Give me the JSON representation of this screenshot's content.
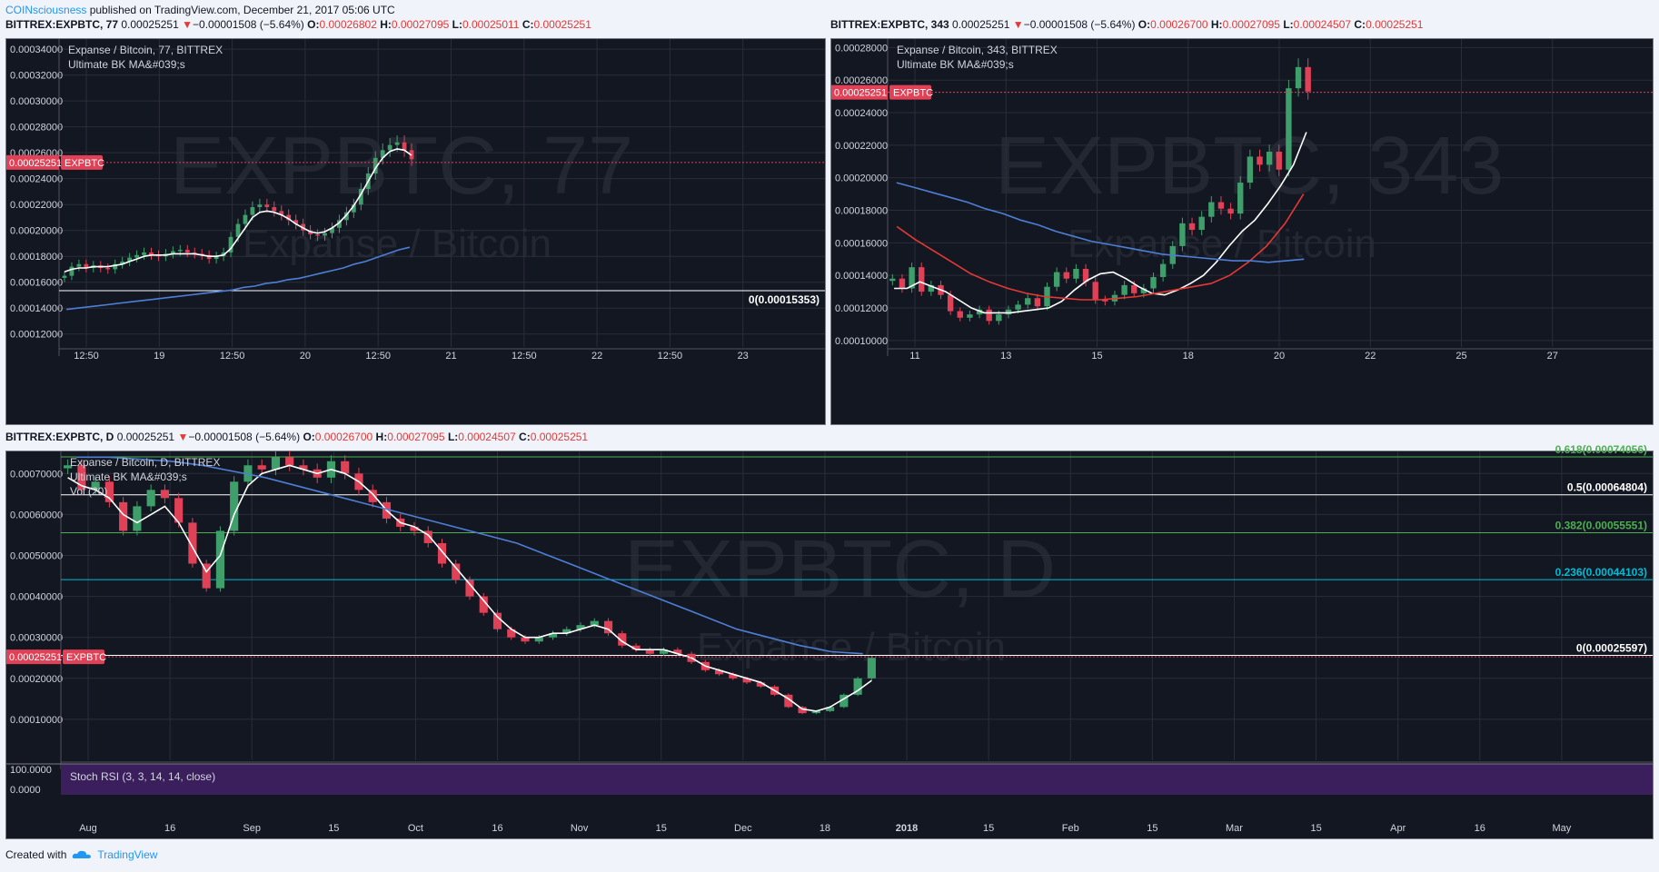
{
  "publish": {
    "user": "COINsciousness",
    "text": " published on TradingView.com, December 21, 2017 05:06 UTC"
  },
  "charts_header": [
    {
      "symbol": "BITTREX:EXPBTC, 77",
      "price": "0.00025251",
      "arrow": "▼",
      "change": "−0.00001508 (−5.64%)",
      "o": "0.00026802",
      "h": "0.00027095",
      "l": "0.00025011",
      "c": "0.00025251"
    },
    {
      "symbol": "BITTREX:EXPBTC, 343",
      "price": "0.00025251",
      "arrow": "▼",
      "change": "−0.00001508 (−5.64%)",
      "o": "0.00026700",
      "h": "0.00027095",
      "l": "0.00024507",
      "c": "0.00025251"
    },
    {
      "symbol": "BITTREX:EXPBTC, D",
      "price": "0.00025251",
      "arrow": "▼",
      "change": "−0.00001508 (−5.64%)",
      "o": "0.00026700",
      "h": "0.00027095",
      "l": "0.00024507",
      "c": "0.00025251"
    }
  ],
  "colors": {
    "up": "#3f9f6b",
    "down": "#e04157",
    "ma_white": "#ffffff",
    "ma_blue": "#4d7fd6",
    "ma_red": "#e53935",
    "fib_green": "#4caf50",
    "fib_cyan": "#00bcd4",
    "panel_bg": "#131722",
    "grid": "#2a2e39",
    "axis_text": "#d1d4dc"
  },
  "footer": {
    "created": "Created with",
    "brand": "TradingView",
    "icon": "tradingview-cloud-icon"
  },
  "chart_data": [
    {
      "type": "candlestick",
      "title": "Expanse / Bitcoin, 77, BITTREX",
      "subtitle": "Ultimate BK MA&#039;s",
      "watermark": "EXPBTC, 77",
      "watermark_sub": "Expanse / Bitcoin",
      "price_tag": "0.00025251",
      "symbol_tag": "EXPBTC",
      "ylim": [
        0.00011,
        0.000345
      ],
      "y_ticks": [
        "0.00034000",
        "0.00032000",
        "0.00030000",
        "0.00028000",
        "0.00026000",
        "0.00024000",
        "0.00022000",
        "0.00020000",
        "0.00018000",
        "0.00016000",
        "0.00014000",
        "0.00012000"
      ],
      "x_ticks": [
        "12:50",
        "19",
        "12:50",
        "20",
        "12:50",
        "21",
        "12:50",
        "22",
        "12:50",
        "23"
      ],
      "horizontal_line": {
        "label": "0(0.00015353)",
        "value": 0.00015353
      },
      "series": [
        {
          "name": "close",
          "values": [
            0.000165,
            0.000172,
            0.000174,
            0.000171,
            0.000173,
            0.000171,
            0.00017,
            0.000174,
            0.000176,
            0.000179,
            0.000181,
            0.000183,
            0.000181,
            0.00018,
            0.000182,
            0.000184,
            0.000185,
            0.000183,
            0.000182,
            0.000181,
            0.000178,
            0.00018,
            0.000183,
            0.000195,
            0.000205,
            0.000212,
            0.000218,
            0.00022,
            0.000218,
            0.000215,
            0.000212,
            0.000208,
            0.000205,
            0.0002,
            0.000197,
            0.000196,
            0.000198,
            0.000202,
            0.000208,
            0.000214,
            0.00022,
            0.000232,
            0.000244,
            0.000256,
            0.000262,
            0.000266,
            0.000268,
            0.000262,
            0.000255
          ]
        },
        {
          "name": "ma_fast",
          "values": [
            0.000168,
            0.00017,
            0.000171,
            0.000171,
            0.000172,
            0.000172,
            0.000172,
            0.000173,
            0.000174,
            0.000176,
            0.000178,
            0.00018,
            0.000181,
            0.000181,
            0.000181,
            0.000182,
            0.000182,
            0.000182,
            0.000182,
            0.000181,
            0.00018,
            0.00018,
            0.000181,
            0.000186,
            0.000194,
            0.000202,
            0.00021,
            0.000214,
            0.000215,
            0.000214,
            0.000212,
            0.000209,
            0.000205,
            0.000202,
            0.000199,
            0.000198,
            0.000199,
            0.000202,
            0.000206,
            0.000212,
            0.000219,
            0.000228,
            0.000238,
            0.000248,
            0.000256,
            0.000261,
            0.000263,
            0.000262,
            0.000258
          ]
        },
        {
          "name": "ma_slow",
          "values": [
            0.000139,
            0.00014,
            0.000141,
            0.000142,
            0.000143,
            0.000144,
            0.000145,
            0.000146,
            0.000147,
            0.000148,
            0.000149,
            0.00015,
            0.000151,
            0.000152,
            0.000153,
            0.000154,
            0.000156,
            0.000157,
            0.000159,
            0.00016,
            0.000162,
            0.000163,
            0.000165,
            0.000167,
            0.000169,
            0.000171,
            0.000174,
            0.000176,
            0.000179,
            0.000182,
            0.000185,
            0.000187
          ]
        }
      ]
    },
    {
      "type": "candlestick",
      "title": "Expanse / Bitcoin, 343, BITTREX",
      "subtitle": "Ultimate BK MA&#039;s",
      "watermark": "EXPBTC, 343",
      "watermark_sub": "Expanse / Bitcoin",
      "price_tag": "0.00025251",
      "symbol_tag": "EXPBTC",
      "ylim": [
        9.6e-05,
        0.000283
      ],
      "y_ticks": [
        "0.00028000",
        "0.00026000",
        "0.00024000",
        "0.00022000",
        "0.00020000",
        "0.00018000",
        "0.00016000",
        "0.00014000",
        "0.00012000",
        "0.00010000"
      ],
      "x_ticks": [
        "11",
        "13",
        "15",
        "18",
        "20",
        "22",
        "25",
        "27"
      ],
      "series": [
        {
          "name": "close",
          "values": [
            0.000138,
            0.000132,
            0.000145,
            0.00013,
            0.000134,
            0.000128,
            0.000118,
            0.000114,
            0.000116,
            0.000119,
            0.000112,
            0.000116,
            0.000119,
            0.000122,
            0.000126,
            0.000121,
            0.000133,
            0.000142,
            0.000138,
            0.000144,
            0.000136,
            0.000125,
            0.000124,
            0.000128,
            0.000134,
            0.000129,
            0.000132,
            0.000139,
            0.000147,
            0.000158,
            0.000172,
            0.000168,
            0.000176,
            0.000185,
            0.000181,
            0.000178,
            0.000197,
            0.000213,
            0.000208,
            0.000216,
            0.000205,
            0.000255,
            0.000268,
            0.000253
          ]
        },
        {
          "name": "ma_fast",
          "values": [
            0.000132,
            0.000132,
            0.000136,
            0.000133,
            0.00013,
            0.000125,
            0.00012,
            0.000117,
            0.000117,
            0.000117,
            0.000118,
            0.000119,
            0.00012,
            0.000124,
            0.000131,
            0.000137,
            0.000141,
            0.000142,
            0.000138,
            0.000133,
            0.000129,
            0.000128,
            0.000131,
            0.000135,
            0.00014,
            0.000148,
            0.000158,
            0.000167,
            0.000174,
            0.000184,
            0.000195,
            0.000208,
            0.000228
          ]
        },
        {
          "name": "ma_mid",
          "values": [
            0.00017,
            0.000162,
            0.000155,
            0.000148,
            0.000141,
            0.000136,
            0.000132,
            0.000129,
            0.000127,
            0.000126,
            0.000125,
            0.000125,
            0.000126,
            0.000127,
            0.000129,
            0.000131,
            0.000133,
            0.000135,
            0.00014,
            0.000148,
            0.000158,
            0.000172,
            0.00019
          ]
        },
        {
          "name": "ma_slow",
          "values": [
            0.000197,
            0.000194,
            0.000191,
            0.000188,
            0.000185,
            0.000181,
            0.000178,
            0.000174,
            0.000171,
            0.000167,
            0.000164,
            0.000161,
            0.000159,
            0.000157,
            0.000155,
            0.000153,
            0.000152,
            0.000151,
            0.00015,
            0.000149,
            0.000149,
            0.000148,
            0.000149,
            0.00015
          ]
        }
      ]
    },
    {
      "type": "candlestick",
      "title": "Expanse / Bitcoin, D, BITTREX",
      "subtitle": "Ultimate BK MA&#039;s",
      "subtitle2": "Vol (20)",
      "watermark": "EXPBTC, D",
      "watermark_sub": "Expanse / Bitcoin",
      "price_tag": "0.00025251",
      "symbol_tag": "EXPBTC",
      "ylim": [
        0.0,
        0.000745
      ],
      "y_ticks": [
        "0.00070000",
        "0.00060000",
        "0.00050000",
        "0.00040000",
        "0.00030000",
        "0.00020000",
        "0.00010000"
      ],
      "x_ticks": [
        "Aug",
        "16",
        "Sep",
        "15",
        "Oct",
        "16",
        "Nov",
        "15",
        "Dec",
        "18",
        "2018",
        "15",
        "Feb",
        "15",
        "Mar",
        "15",
        "Apr",
        "16",
        "May"
      ],
      "fib_levels": [
        {
          "label": "0.618(0.00074056)",
          "value": 0.00074056,
          "color": "fib_green"
        },
        {
          "label": "0.5(0.00064804)",
          "value": 0.00064804,
          "color": "white"
        },
        {
          "label": "0.382(0.00055551)",
          "value": 0.00055551,
          "color": "fib_green"
        },
        {
          "label": "0.236(0.00044103)",
          "value": 0.00044103,
          "color": "fib_cyan"
        },
        {
          "label": "0(0.00025597)",
          "value": 0.00025597,
          "color": "white"
        }
      ],
      "series": [
        {
          "name": "close",
          "values": [
            0.00072,
            0.00066,
            0.00068,
            0.00063,
            0.00056,
            0.00062,
            0.00066,
            0.00064,
            0.00058,
            0.00048,
            0.00042,
            0.00056,
            0.00068,
            0.00072,
            0.00071,
            0.00074,
            0.00072,
            0.00071,
            0.00069,
            0.00073,
            0.0007,
            0.00066,
            0.00063,
            0.00059,
            0.00057,
            0.00056,
            0.00053,
            0.00048,
            0.00044,
            0.0004,
            0.00036,
            0.00032,
            0.0003,
            0.00029,
            0.0003,
            0.00031,
            0.00032,
            0.00033,
            0.00034,
            0.00031,
            0.00028,
            0.00027,
            0.00026,
            0.00027,
            0.00026,
            0.00024,
            0.00022,
            0.00021,
            0.0002,
            0.00019,
            0.00018,
            0.00016,
            0.00013,
            0.000115,
            0.00012,
            0.00013,
            0.00016,
            0.0002,
            0.00025
          ]
        },
        {
          "name": "ma_fast",
          "values": [
            0.00069,
            0.00067,
            0.00066,
            0.00064,
            0.0006,
            0.00058,
            0.0006,
            0.00062,
            0.00058,
            0.00052,
            0.00046,
            0.0005,
            0.0006,
            0.00067,
            0.0007,
            0.00071,
            0.00072,
            0.00071,
            0.0007,
            0.00071,
            0.0007,
            0.00068,
            0.00065,
            0.00061,
            0.00058,
            0.00057,
            0.00055,
            0.00051,
            0.00047,
            0.00043,
            0.00039,
            0.00035,
            0.00032,
            0.0003,
            0.0003,
            0.00031,
            0.00031,
            0.00032,
            0.00033,
            0.00032,
            0.00029,
            0.00027,
            0.00027,
            0.00027,
            0.00026,
            0.00025,
            0.00023,
            0.00022,
            0.00021,
            0.0002,
            0.00019,
            0.00017,
            0.00015,
            0.000125,
            0.00012,
            0.00013,
            0.00015,
            0.00017,
            0.000195
          ]
        },
        {
          "name": "ma_slow",
          "values": [
            0.00074,
            0.00074,
            0.000735,
            0.00073,
            0.00072,
            0.000705,
            0.00069,
            0.00067,
            0.00065,
            0.00063,
            0.00061,
            0.00059,
            0.00057,
            0.00055,
            0.00053,
            0.0005,
            0.00047,
            0.00044,
            0.00041,
            0.00038,
            0.00035,
            0.00032,
            0.0003,
            0.00028,
            0.000265,
            0.00026
          ]
        }
      ],
      "volume_label": "Vol (20)",
      "indicator": {
        "name": "Stoch RSI (3, 3, 14, 14, close)",
        "y_ticks": [
          "100.0000",
          "0.0000"
        ]
      }
    }
  ]
}
